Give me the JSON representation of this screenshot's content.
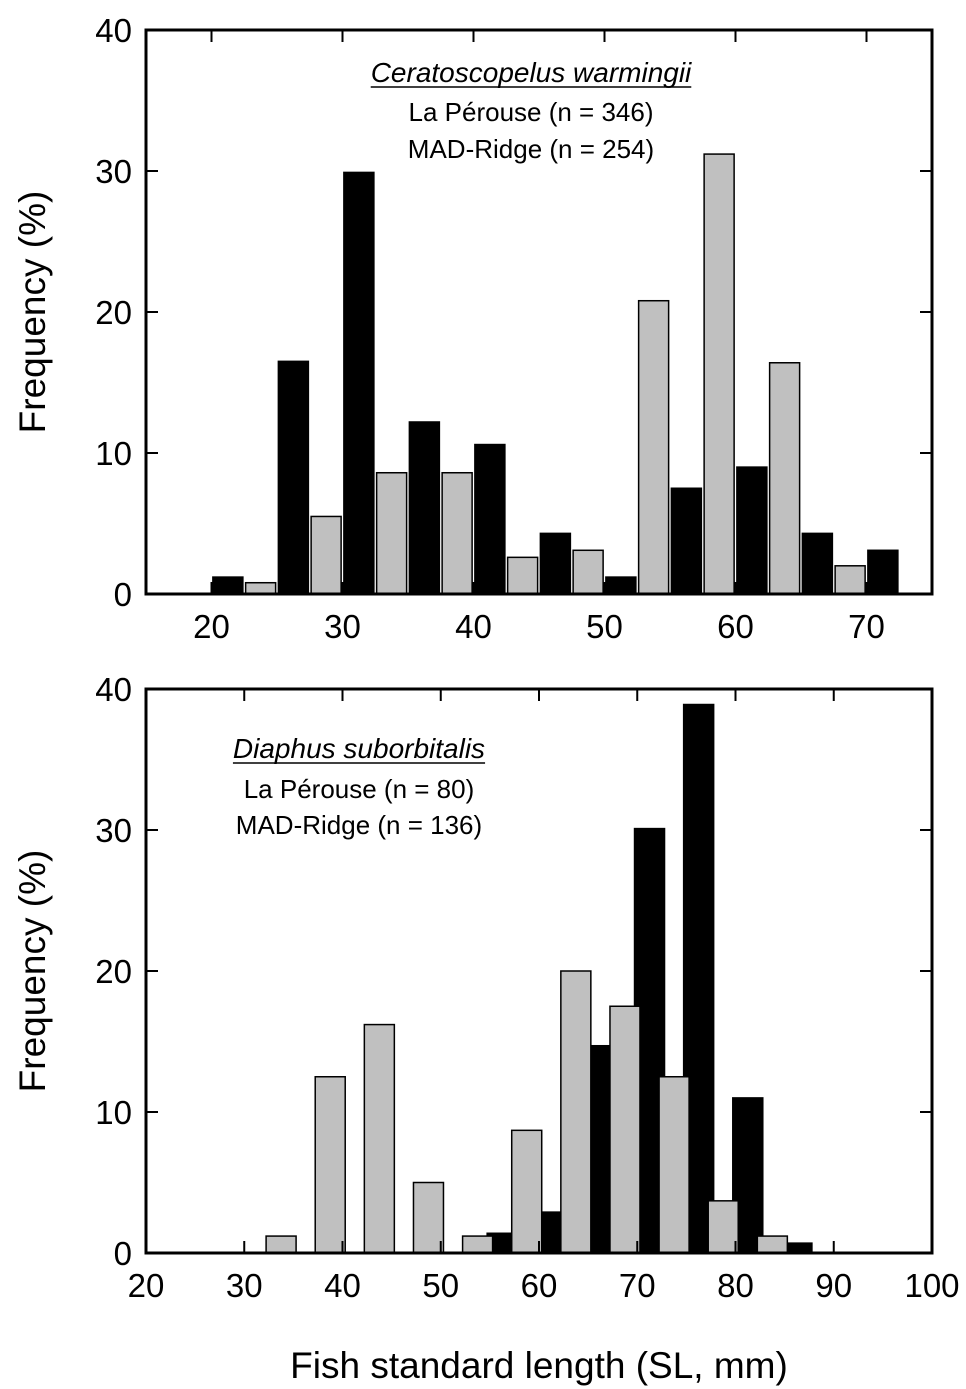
{
  "colors": {
    "la_perouse": "#000000",
    "mad_ridge": "#c0c0c0",
    "stroke": "#000000"
  },
  "chart_data": [
    {
      "type": "bar",
      "species": "Ceratoscopelus warmingii",
      "legend_lines": [
        "La Pérouse (n = 346)",
        "MAD-Ridge (n = 254)"
      ],
      "ylabel": "Frequency (%)",
      "xlabel": "",
      "xlim": [
        15,
        75
      ],
      "ylim": [
        0,
        40
      ],
      "xticks": [
        20,
        30,
        40,
        50,
        60,
        70
      ],
      "yticks": [
        0,
        10,
        20,
        30,
        40
      ],
      "bin_width": 5,
      "series": [
        {
          "name": "La Pérouse",
          "color": "#000000",
          "x": [
            21.25,
            26.25,
            31.25,
            36.25,
            41.25,
            46.25,
            51.25,
            56.25,
            61.25,
            66.25,
            71.25
          ],
          "values": [
            1.2,
            16.5,
            29.9,
            12.2,
            10.6,
            4.3,
            1.2,
            7.5,
            9.0,
            4.3,
            3.1
          ]
        },
        {
          "name": "MAD-Ridge",
          "color": "#c0c0c0",
          "x": [
            23.75,
            28.75,
            33.75,
            38.75,
            43.75,
            48.75,
            53.75,
            58.75,
            63.75,
            68.75
          ],
          "values": [
            0.8,
            5.5,
            8.6,
            8.6,
            2.6,
            3.1,
            20.8,
            31.2,
            16.4,
            2.0
          ]
        }
      ]
    },
    {
      "type": "bar",
      "species": "Diaphus suborbitalis",
      "legend_lines": [
        "La Pérouse (n = 80)",
        "MAD-Ridge (n = 136)"
      ],
      "ylabel": "Frequency (%)",
      "xlabel": "Fish standard length (SL, mm)",
      "xlim": [
        20,
        100
      ],
      "ylim": [
        0,
        40
      ],
      "xticks": [
        20,
        30,
        40,
        50,
        60,
        70,
        80,
        90,
        100
      ],
      "yticks": [
        0,
        10,
        20,
        30,
        40
      ],
      "bin_width": 5,
      "series": [
        {
          "name": "La Pérouse",
          "color": "#000000",
          "x": [
            56.25,
            61.25,
            66.25,
            71.25,
            76.25,
            81.25,
            86.25
          ],
          "values": [
            1.4,
            2.9,
            14.7,
            30.1,
            38.9,
            11.0,
            0.7
          ]
        },
        {
          "name": "MAD-Ridge",
          "color": "#c0c0c0",
          "x": [
            33.75,
            38.75,
            43.75,
            48.75,
            53.75,
            58.75,
            63.75,
            68.75,
            73.75,
            78.75,
            83.75
          ],
          "values": [
            1.2,
            12.5,
            16.2,
            5.0,
            1.2,
            8.7,
            20.0,
            17.5,
            12.5,
            3.7,
            1.2
          ]
        }
      ]
    }
  ]
}
